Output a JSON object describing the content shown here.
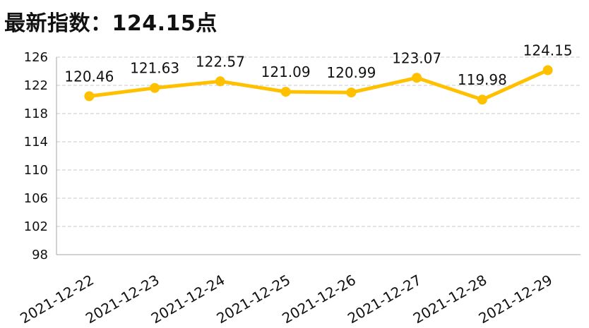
{
  "title": "最新指数：124.15点",
  "chart_data": {
    "type": "line",
    "categories": [
      "2021-12-22",
      "2021-12-23",
      "2021-12-24",
      "2021-12-25",
      "2021-12-26",
      "2021-12-27",
      "2021-12-28",
      "2021-12-29"
    ],
    "series": [
      {
        "values": [
          120.46,
          121.63,
          122.57,
          121.09,
          120.99,
          123.07,
          119.98,
          124.15
        ]
      }
    ],
    "data_labels": [
      "120.46",
      "121.63",
      "122.57",
      "121.09",
      "120.99",
      "123.07",
      "119.98",
      "124.15"
    ],
    "y_ticks": [
      "98",
      "102",
      "106",
      "110",
      "114",
      "118",
      "122",
      "126"
    ],
    "ylim": [
      98,
      126
    ],
    "grid": true,
    "line_color": "#FFC000"
  }
}
